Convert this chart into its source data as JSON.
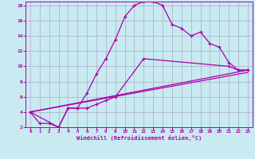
{
  "xlabel": "Windchill (Refroidissement éolien,°C)",
  "bg_color": "#c8eaf0",
  "line_color": "#aa00aa",
  "grid_color": "#aaaacc",
  "xlim": [
    -0.5,
    23.5
  ],
  "ylim": [
    2,
    18.5
  ],
  "xticks": [
    0,
    1,
    2,
    3,
    4,
    5,
    6,
    7,
    8,
    9,
    10,
    11,
    12,
    13,
    14,
    15,
    16,
    17,
    18,
    19,
    20,
    21,
    22,
    23
  ],
  "yticks": [
    2,
    4,
    6,
    8,
    10,
    12,
    14,
    16,
    18
  ],
  "line1_x": [
    0,
    1,
    2,
    3,
    4,
    5,
    6,
    7,
    8,
    9,
    10,
    11,
    12,
    13,
    14,
    15,
    16,
    17,
    18,
    19,
    20,
    21,
    22,
    23
  ],
  "line1_y": [
    4,
    2.5,
    2.5,
    2,
    4.5,
    4.5,
    6.5,
    9,
    11,
    13.5,
    16.5,
    18,
    18.5,
    18.5,
    18,
    15.5,
    15,
    14,
    14.5,
    13,
    12.5,
    10.5,
    9.5,
    9.5
  ],
  "line2_x": [
    0,
    3,
    4,
    5,
    6,
    7,
    8,
    9,
    12,
    21,
    22,
    23
  ],
  "line2_y": [
    4,
    2,
    4.5,
    4.5,
    4.5,
    5,
    5.5,
    6,
    11,
    10,
    9.5,
    9.5
  ],
  "line3_x": [
    0,
    23
  ],
  "line3_y": [
    4,
    9.5
  ],
  "line4_x": [
    0,
    23
  ],
  "line4_y": [
    4,
    9.2
  ],
  "marker_size": 3,
  "linewidth": 0.9
}
